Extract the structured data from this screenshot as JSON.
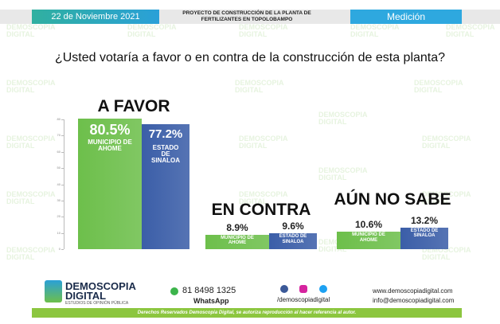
{
  "header": {
    "date": "22 de Noviembre 2021",
    "project": "PROYECTO DE CONSTRUCCIÓN DE LA PLANTA DE FERTILIZANTES EN TOPOLOBAMPO",
    "section": "Medición"
  },
  "watermark": "DEMOSCOPIA DIGITAL",
  "chart_data": {
    "type": "bar",
    "title": "¿Usted votaría a favor o en contra de la construcción de esta planta?",
    "categories": [
      "A FAVOR",
      "EN CONTRA",
      "AÚN NO SABE"
    ],
    "series": [
      {
        "name": "MUNICIPIO DE AHOME",
        "color": "#6dbf4b",
        "values": [
          80.5,
          8.9,
          10.6
        ],
        "value_labels": [
          "80.5%",
          "8.9%",
          "10.6%"
        ]
      },
      {
        "name": "ESTADO DE SINALOA",
        "color": "#3b5ea8",
        "values": [
          77.2,
          9.6,
          13.2
        ],
        "value_labels": [
          "77.2%",
          "9.6%",
          "13.2%"
        ]
      }
    ],
    "ylim": [
      0,
      80
    ],
    "yticks": [
      0,
      10,
      20,
      30,
      40,
      50,
      60,
      70,
      80
    ]
  },
  "footer": {
    "brand": "DEMOSCOPIA DIGITAL",
    "tagline": "ESTUDIOS DE OPINIÓN PÚBLICA",
    "phone": "81 8498 1325",
    "whatsapp": "WhatsApp",
    "social": "/demoscopiadigital",
    "web": "www.demoscopiadigital.com",
    "email": "info@demoscopiadigital.com",
    "rights": "Derechos Reservados Demoscopia Digital, se autoriza reproducción al hacer referencia al autor."
  }
}
